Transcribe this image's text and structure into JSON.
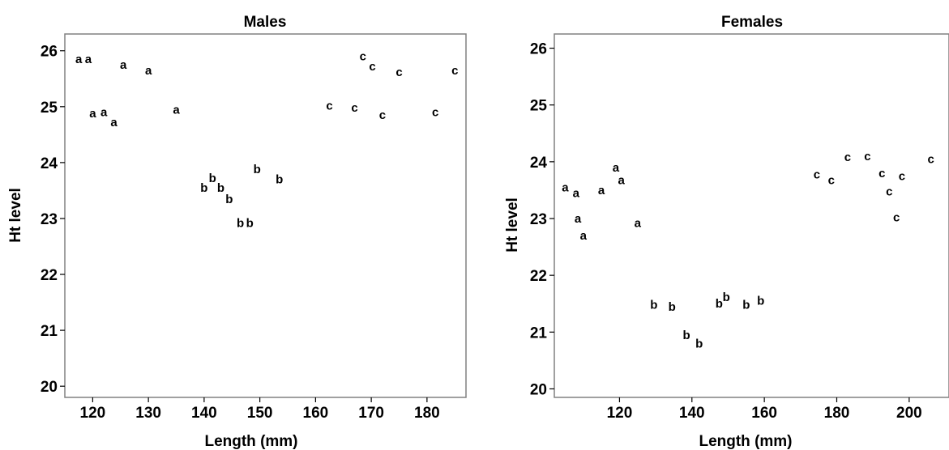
{
  "chart_data": [
    {
      "type": "scatter",
      "title": "Males",
      "xlabel": "Length (mm)",
      "ylabel": "Ht level",
      "xlim": [
        115,
        187
      ],
      "ylim": [
        19.8,
        26.3
      ],
      "xticks": [
        120,
        130,
        140,
        150,
        160,
        170,
        180
      ],
      "yticks": [
        20,
        21,
        22,
        23,
        24,
        25,
        26
      ],
      "grid": false,
      "points": [
        {
          "x": 117.5,
          "y": 25.85,
          "label": "a"
        },
        {
          "x": 119.2,
          "y": 25.85,
          "label": "a"
        },
        {
          "x": 125.5,
          "y": 25.75,
          "label": "a"
        },
        {
          "x": 130.0,
          "y": 25.65,
          "label": "a"
        },
        {
          "x": 120.0,
          "y": 24.88,
          "label": "a"
        },
        {
          "x": 122.0,
          "y": 24.9,
          "label": "a"
        },
        {
          "x": 123.8,
          "y": 24.72,
          "label": "a"
        },
        {
          "x": 135.0,
          "y": 24.95,
          "label": "a"
        },
        {
          "x": 140.0,
          "y": 23.55,
          "label": "b"
        },
        {
          "x": 141.5,
          "y": 23.72,
          "label": "b"
        },
        {
          "x": 143.0,
          "y": 23.55,
          "label": "b"
        },
        {
          "x": 144.5,
          "y": 23.35,
          "label": "b"
        },
        {
          "x": 146.5,
          "y": 22.92,
          "label": "b"
        },
        {
          "x": 148.2,
          "y": 22.92,
          "label": "b"
        },
        {
          "x": 149.5,
          "y": 23.88,
          "label": "b"
        },
        {
          "x": 153.5,
          "y": 23.7,
          "label": "b"
        },
        {
          "x": 162.5,
          "y": 25.02,
          "label": "c"
        },
        {
          "x": 167.0,
          "y": 24.98,
          "label": "c"
        },
        {
          "x": 168.5,
          "y": 25.9,
          "label": "c"
        },
        {
          "x": 170.2,
          "y": 25.72,
          "label": "c"
        },
        {
          "x": 172.0,
          "y": 24.85,
          "label": "c"
        },
        {
          "x": 175.0,
          "y": 25.62,
          "label": "c"
        },
        {
          "x": 181.5,
          "y": 24.9,
          "label": "c"
        },
        {
          "x": 185.0,
          "y": 25.65,
          "label": "c"
        }
      ]
    },
    {
      "type": "scatter",
      "title": "Females",
      "xlabel": "Length (mm)",
      "ylabel": "Ht level",
      "xlim": [
        102,
        211
      ],
      "ylim": [
        19.85,
        26.25
      ],
      "xticks": [
        120,
        140,
        160,
        180,
        200
      ],
      "yticks": [
        20,
        21,
        22,
        23,
        24,
        25,
        26
      ],
      "grid": false,
      "points": [
        {
          "x": 105.0,
          "y": 23.55,
          "label": "a"
        },
        {
          "x": 108.0,
          "y": 23.45,
          "label": "a"
        },
        {
          "x": 108.5,
          "y": 23.0,
          "label": "a"
        },
        {
          "x": 110.0,
          "y": 22.7,
          "label": "a"
        },
        {
          "x": 115.0,
          "y": 23.5,
          "label": "a"
        },
        {
          "x": 119.0,
          "y": 23.9,
          "label": "a"
        },
        {
          "x": 120.5,
          "y": 23.68,
          "label": "a"
        },
        {
          "x": 125.0,
          "y": 22.92,
          "label": "a"
        },
        {
          "x": 129.5,
          "y": 21.48,
          "label": "b"
        },
        {
          "x": 134.5,
          "y": 21.45,
          "label": "b"
        },
        {
          "x": 138.5,
          "y": 20.95,
          "label": "b"
        },
        {
          "x": 142.0,
          "y": 20.8,
          "label": "b"
        },
        {
          "x": 147.5,
          "y": 21.5,
          "label": "b"
        },
        {
          "x": 149.5,
          "y": 21.62,
          "label": "b"
        },
        {
          "x": 155.0,
          "y": 21.48,
          "label": "b"
        },
        {
          "x": 159.0,
          "y": 21.55,
          "label": "b"
        },
        {
          "x": 174.5,
          "y": 23.78,
          "label": "c"
        },
        {
          "x": 178.5,
          "y": 23.68,
          "label": "c"
        },
        {
          "x": 183.0,
          "y": 24.08,
          "label": "c"
        },
        {
          "x": 188.5,
          "y": 24.1,
          "label": "c"
        },
        {
          "x": 192.5,
          "y": 23.8,
          "label": "c"
        },
        {
          "x": 194.5,
          "y": 23.48,
          "label": "c"
        },
        {
          "x": 196.5,
          "y": 23.02,
          "label": "c"
        },
        {
          "x": 198.0,
          "y": 23.75,
          "label": "c"
        },
        {
          "x": 206.0,
          "y": 24.05,
          "label": "c"
        }
      ]
    }
  ]
}
